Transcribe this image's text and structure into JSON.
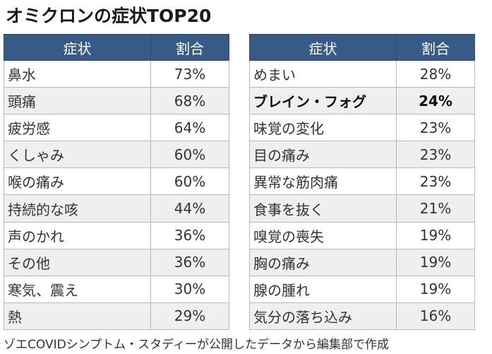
{
  "title": "オミクロンの症状TOP20",
  "headers": {
    "symptom": "症状",
    "ratio": "割合"
  },
  "left_rows": [
    {
      "symptom": "鼻水",
      "ratio": "73%"
    },
    {
      "symptom": "頭痛",
      "ratio": "68%"
    },
    {
      "symptom": "疲労感",
      "ratio": "64%"
    },
    {
      "symptom": "くしゃみ",
      "ratio": "60%"
    },
    {
      "symptom": "喉の痛み",
      "ratio": "60%"
    },
    {
      "symptom": "持続的な咳",
      "ratio": "44%"
    },
    {
      "symptom": "声のかれ",
      "ratio": "36%"
    },
    {
      "symptom": "その他",
      "ratio": "36%"
    },
    {
      "symptom": "寒気、震え",
      "ratio": "30%"
    },
    {
      "symptom": "熱",
      "ratio": "29%"
    }
  ],
  "right_rows": [
    {
      "symptom": "めまい",
      "ratio": "28%"
    },
    {
      "symptom": "ブレイン・フォグ",
      "ratio": "24%"
    },
    {
      "symptom": "味覚の変化",
      "ratio": "23%"
    },
    {
      "symptom": "目の痛み",
      "ratio": "23%"
    },
    {
      "symptom": "異常な筋肉痛",
      "ratio": "23%"
    },
    {
      "symptom": "食事を抜く",
      "ratio": "21%"
    },
    {
      "symptom": "嗅覚の喪失",
      "ratio": "19%"
    },
    {
      "symptom": "胸の痛み",
      "ratio": "19%"
    },
    {
      "symptom": "腺の腫れ",
      "ratio": "19%"
    },
    {
      "symptom": "気分の落ち込み",
      "ratio": "16%"
    }
  ],
  "source_note": "ゾエCOVIDシンプトム・スタディーが公開したデータから編集部で作成",
  "colors": {
    "header_bg": "#375a87",
    "stripe": "#efefef"
  }
}
